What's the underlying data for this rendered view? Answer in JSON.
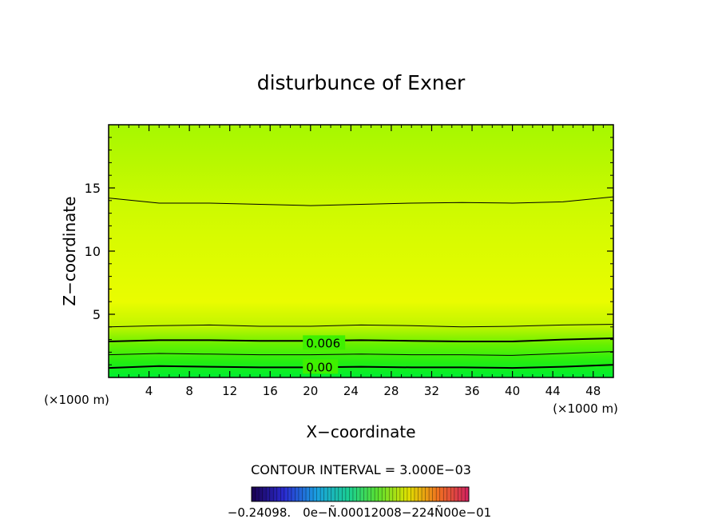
{
  "chart_data": {
    "type": "contour",
    "title": "disturbunce of Exner",
    "xlabel": "X−coordinate",
    "ylabel": "Z−coordinate",
    "x_unit_left": "(×1000 m)",
    "x_unit_right": "(×1000 m)",
    "xlim": [
      0,
      50
    ],
    "ylim": [
      0,
      20
    ],
    "x_ticks": [
      4,
      8,
      12,
      16,
      20,
      24,
      28,
      32,
      36,
      40,
      44,
      48
    ],
    "y_ticks": [
      5,
      10,
      15
    ],
    "contour_interval_text": "CONTOUR INTERVAL = 3.000E−03",
    "contour_labels": [
      {
        "text": "0.006",
        "x": 17.5,
        "z": 2.7
      },
      {
        "text": "0.00",
        "x": 17.5,
        "z": 0.8
      }
    ],
    "contour_lines": [
      {
        "level": 0.0,
        "bold": true,
        "z": [
          0.75,
          0.9,
          0.85,
          0.8,
          0.8,
          0.85,
          0.8,
          0.8,
          0.75,
          0.85,
          1.0
        ]
      },
      {
        "level": 0.003,
        "bold": false,
        "z": [
          1.8,
          1.9,
          1.85,
          1.8,
          1.8,
          1.85,
          1.8,
          1.8,
          1.75,
          1.9,
          2.05
        ]
      },
      {
        "level": 0.006,
        "bold": true,
        "z": [
          2.85,
          2.95,
          2.95,
          2.9,
          2.9,
          2.95,
          2.9,
          2.85,
          2.85,
          3.0,
          3.1
        ]
      },
      {
        "level": 0.009,
        "bold": false,
        "z": [
          4.0,
          4.1,
          4.15,
          4.05,
          4.05,
          4.15,
          4.1,
          4.0,
          4.05,
          4.15,
          4.2
        ]
      },
      {
        "level": 0.009,
        "bold": false,
        "z": [
          14.2,
          13.8,
          13.8,
          13.7,
          13.6,
          13.7,
          13.8,
          13.85,
          13.8,
          13.9,
          14.3
        ]
      }
    ],
    "colorbar_labels_text": "−0.24098. 0e−Ñ.00012008−224Ñ00e−01",
    "colors": {
      "band_bottom": "#00ee33",
      "band_low": "#44f000",
      "band_mid": "#a6f200",
      "band_upper": "#d4fb00",
      "band_peak": "#ecfc00",
      "band_top": "#a9fc00"
    }
  }
}
